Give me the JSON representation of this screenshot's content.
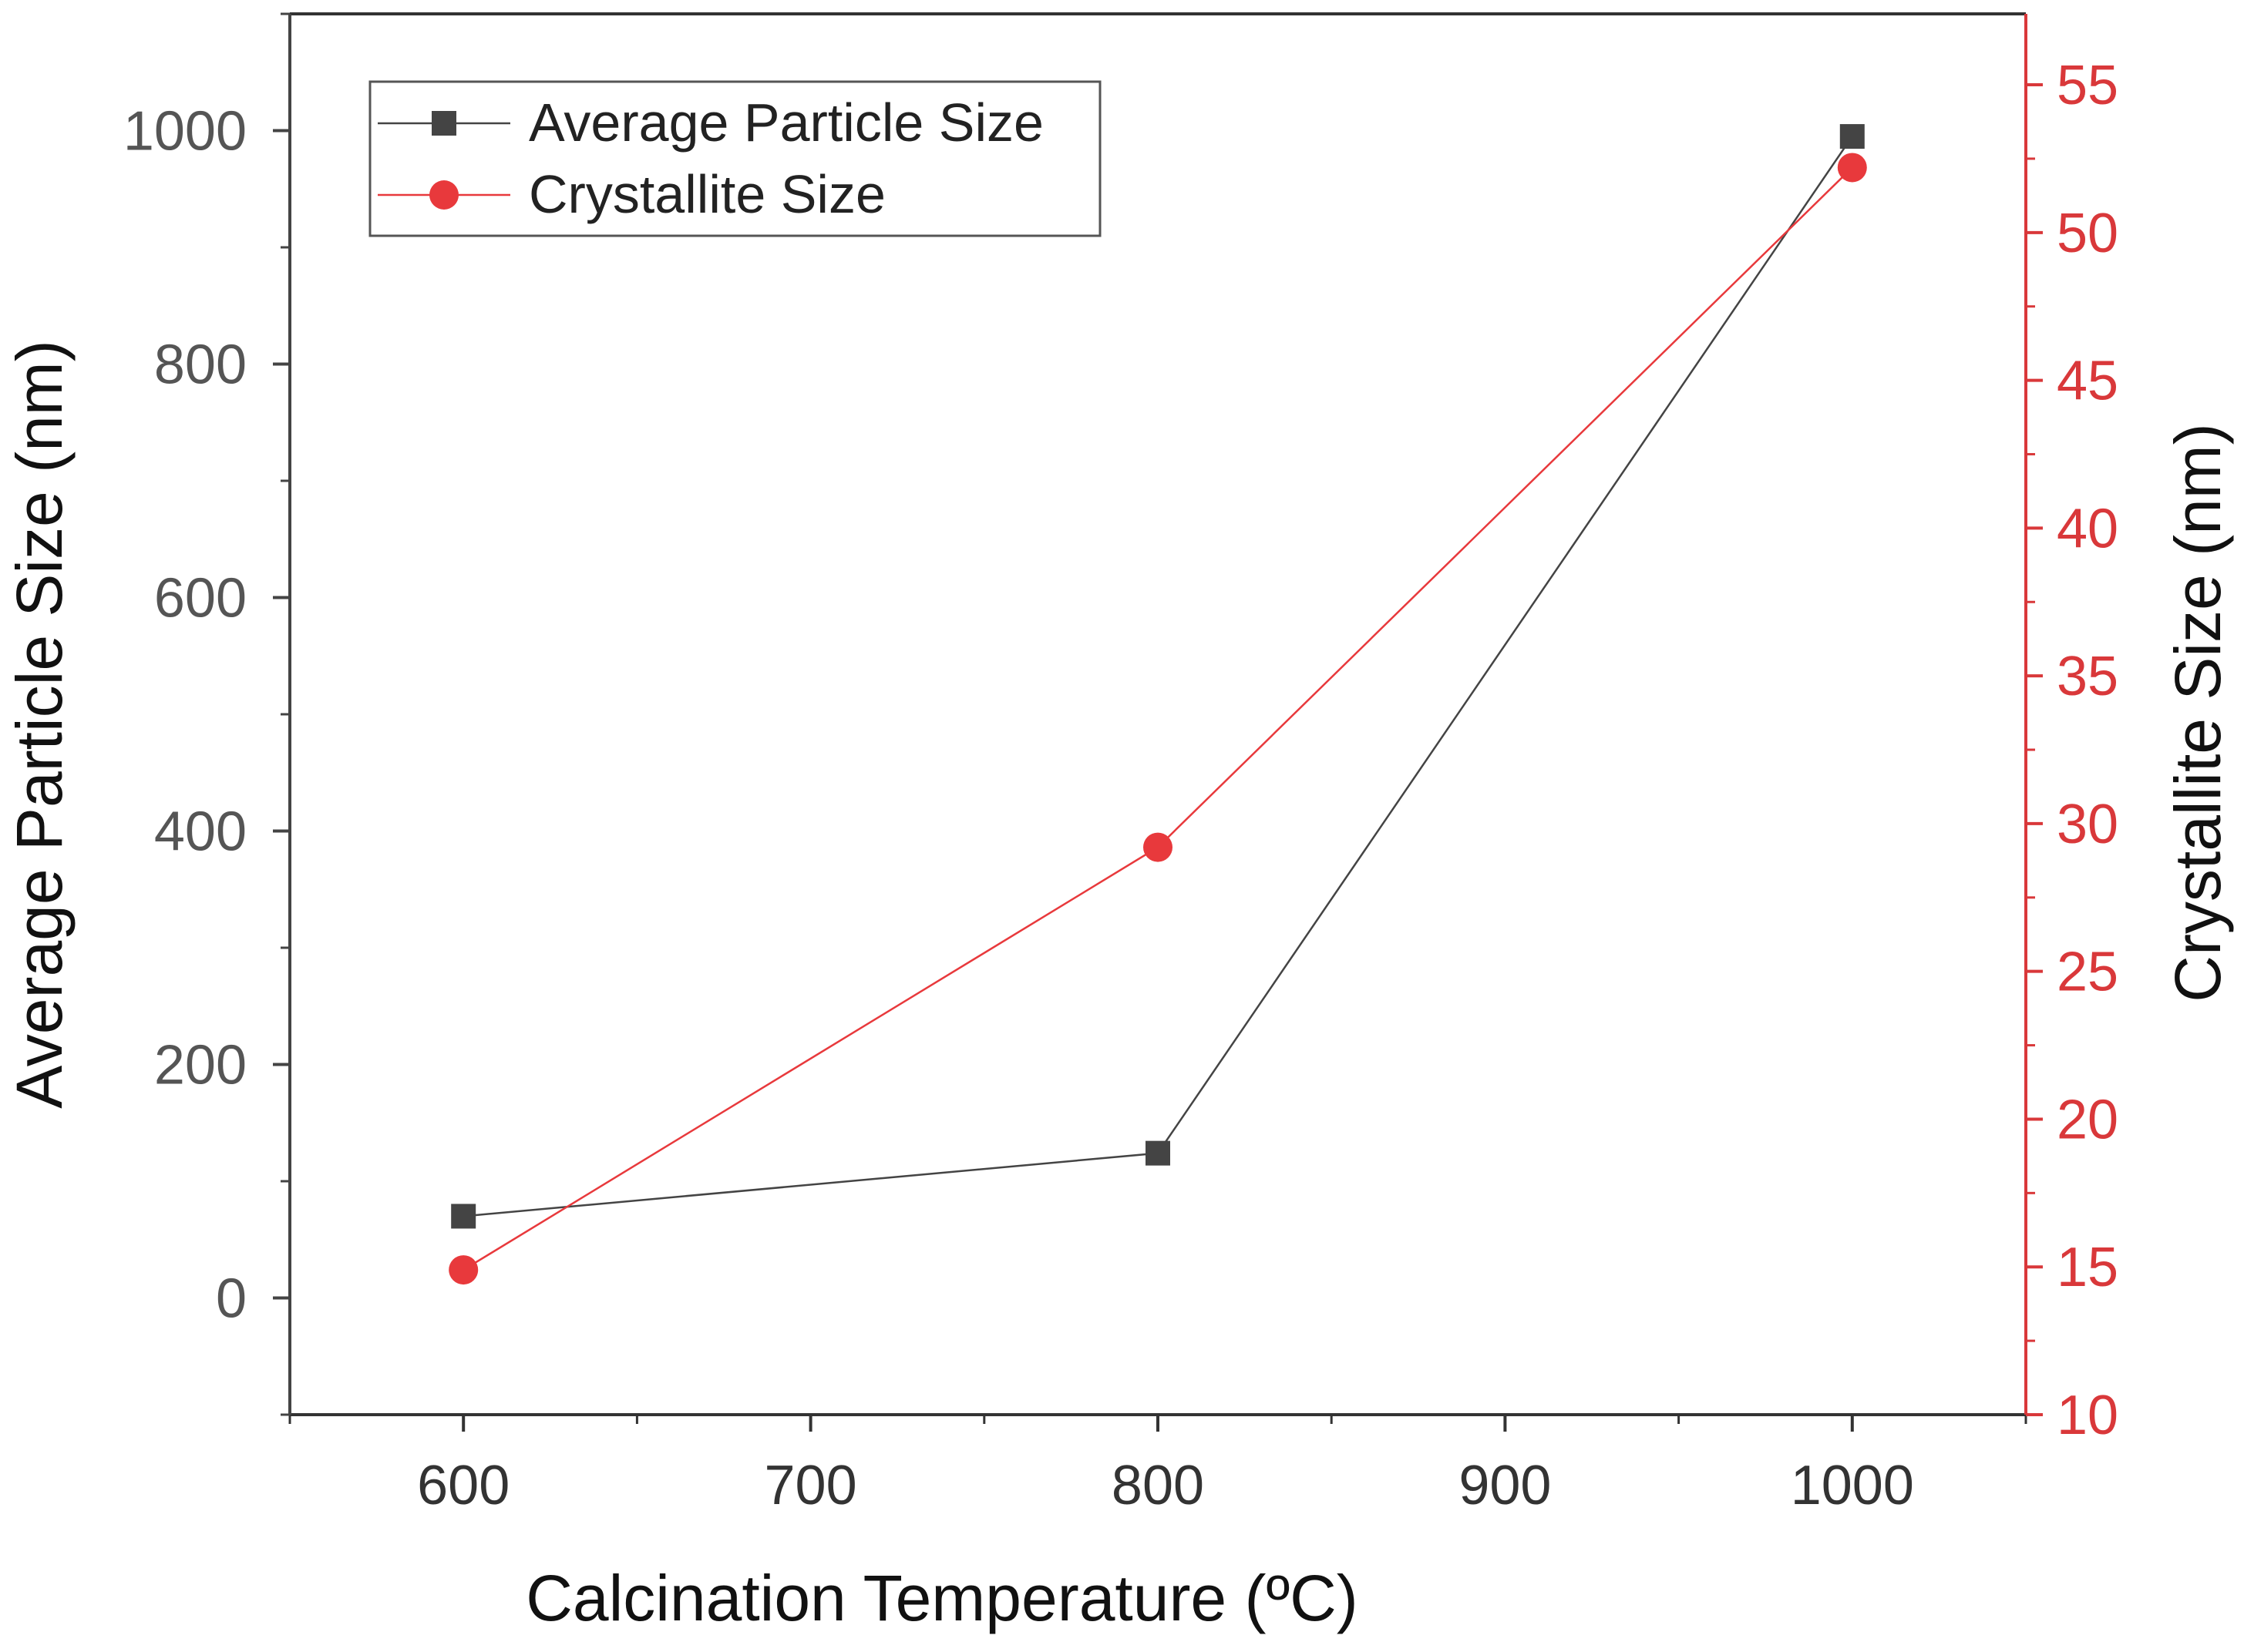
{
  "colors": {
    "left_series": "#444444",
    "right_series": "#e8393c",
    "left_axis": "#444444",
    "right_axis": "#d9383a",
    "left_tick_text": "#555555",
    "right_tick_text": "#d9383a",
    "axis_title": "#111111"
  },
  "chart_data": {
    "type": "line",
    "title": "",
    "xlabel": "Calcination Temperature (ºC)",
    "ylabel_left": "Average Particle Size (nm)",
    "ylabel_right": "Crystallite Size (nm)",
    "xlim": [
      550,
      1050
    ],
    "ylim_left": [
      -100,
      1100
    ],
    "ylim_right": [
      10,
      57.4
    ],
    "x_ticks": [
      600,
      700,
      800,
      900,
      1000
    ],
    "x_tick_labels": [
      "600",
      "700",
      "800",
      "900",
      "1000"
    ],
    "y_left_ticks": [
      0,
      200,
      400,
      600,
      800,
      1000
    ],
    "y_left_tick_labels": [
      "0",
      "200",
      "400",
      "600",
      "800",
      "1000"
    ],
    "y_right_ticks": [
      10,
      15,
      20,
      25,
      30,
      35,
      40,
      45,
      50,
      55
    ],
    "y_right_tick_labels": [
      "10",
      "15",
      "20",
      "25",
      "30",
      "35",
      "40",
      "45",
      "50",
      "55"
    ],
    "legend_position": "top-left",
    "series": [
      {
        "name": "Average Particle Size",
        "axis": "left",
        "marker": "square",
        "x": [
          600,
          800,
          1000
        ],
        "values": [
          70,
          124,
          995
        ]
      },
      {
        "name": "Crystallite Size",
        "axis": "right",
        "marker": "circle",
        "x": [
          600,
          800,
          1000
        ],
        "values": [
          14.9,
          29.2,
          52.2
        ]
      }
    ]
  }
}
